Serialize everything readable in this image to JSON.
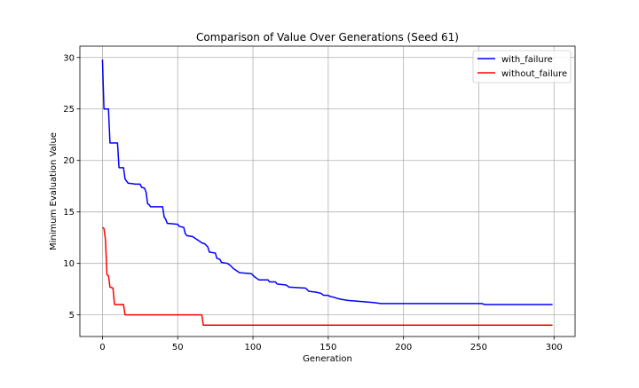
{
  "chart_data": {
    "type": "line",
    "title": "Comparison of Value Over Generations (Seed 61)",
    "xlabel": "Generation",
    "ylabel": "Minimum Evaluation Value",
    "xlim": [
      -15,
      314
    ],
    "ylim": [
      2.9,
      31.1
    ],
    "xticks": [
      0,
      50,
      100,
      150,
      200,
      250,
      300
    ],
    "yticks": [
      5,
      10,
      15,
      20,
      25,
      30
    ],
    "grid": true,
    "legend_position": "top-right",
    "series": [
      {
        "name": "with_failure",
        "color": "#0000ff",
        "points": [
          [
            0,
            29.8
          ],
          [
            1,
            25.0
          ],
          [
            3,
            25.0
          ],
          [
            4,
            25.0
          ],
          [
            5,
            21.7
          ],
          [
            7,
            21.7
          ],
          [
            10,
            21.7
          ],
          [
            11,
            19.3
          ],
          [
            14,
            19.3
          ],
          [
            15,
            18.2
          ],
          [
            16,
            18.0
          ],
          [
            17,
            17.8
          ],
          [
            22,
            17.7
          ],
          [
            25,
            17.7
          ],
          [
            26,
            17.4
          ],
          [
            28,
            17.3
          ],
          [
            29,
            16.9
          ],
          [
            30,
            15.8
          ],
          [
            31,
            15.7
          ],
          [
            32,
            15.5
          ],
          [
            40,
            15.5
          ],
          [
            41,
            14.5
          ],
          [
            42,
            14.3
          ],
          [
            43,
            13.9
          ],
          [
            50,
            13.8
          ],
          [
            51,
            13.6
          ],
          [
            54,
            13.5
          ],
          [
            55,
            12.9
          ],
          [
            56,
            12.7
          ],
          [
            60,
            12.6
          ],
          [
            62,
            12.4
          ],
          [
            64,
            12.2
          ],
          [
            66,
            12.0
          ],
          [
            68,
            11.9
          ],
          [
            70,
            11.6
          ],
          [
            71,
            11.1
          ],
          [
            75,
            11.0
          ],
          [
            76,
            10.5
          ],
          [
            78,
            10.4
          ],
          [
            79,
            10.1
          ],
          [
            83,
            10.0
          ],
          [
            85,
            9.8
          ],
          [
            87,
            9.5
          ],
          [
            89,
            9.3
          ],
          [
            91,
            9.1
          ],
          [
            99,
            9.0
          ],
          [
            101,
            8.7
          ],
          [
            103,
            8.5
          ],
          [
            104,
            8.4
          ],
          [
            110,
            8.4
          ],
          [
            111,
            8.2
          ],
          [
            115,
            8.2
          ],
          [
            116,
            8.0
          ],
          [
            122,
            7.9
          ],
          [
            124,
            7.7
          ],
          [
            135,
            7.6
          ],
          [
            137,
            7.3
          ],
          [
            142,
            7.2
          ],
          [
            145,
            7.1
          ],
          [
            147,
            6.9
          ],
          [
            150,
            6.9
          ],
          [
            151,
            6.8
          ],
          [
            154,
            6.7
          ],
          [
            156,
            6.6
          ],
          [
            159,
            6.5
          ],
          [
            163,
            6.4
          ],
          [
            172,
            6.3
          ],
          [
            180,
            6.2
          ],
          [
            185,
            6.1
          ],
          [
            252,
            6.1
          ],
          [
            254,
            6.0
          ],
          [
            299,
            6.0
          ]
        ]
      },
      {
        "name": "without_failure",
        "color": "#ff0000",
        "points": [
          [
            0,
            13.5
          ],
          [
            1,
            13.4
          ],
          [
            2,
            12.3
          ],
          [
            3,
            8.9
          ],
          [
            4,
            8.8
          ],
          [
            5,
            7.7
          ],
          [
            7,
            7.6
          ],
          [
            8,
            6.0
          ],
          [
            14,
            6.0
          ],
          [
            15,
            5.0
          ],
          [
            66,
            5.0
          ],
          [
            67,
            4.0
          ],
          [
            299,
            4.0
          ]
        ]
      }
    ]
  }
}
